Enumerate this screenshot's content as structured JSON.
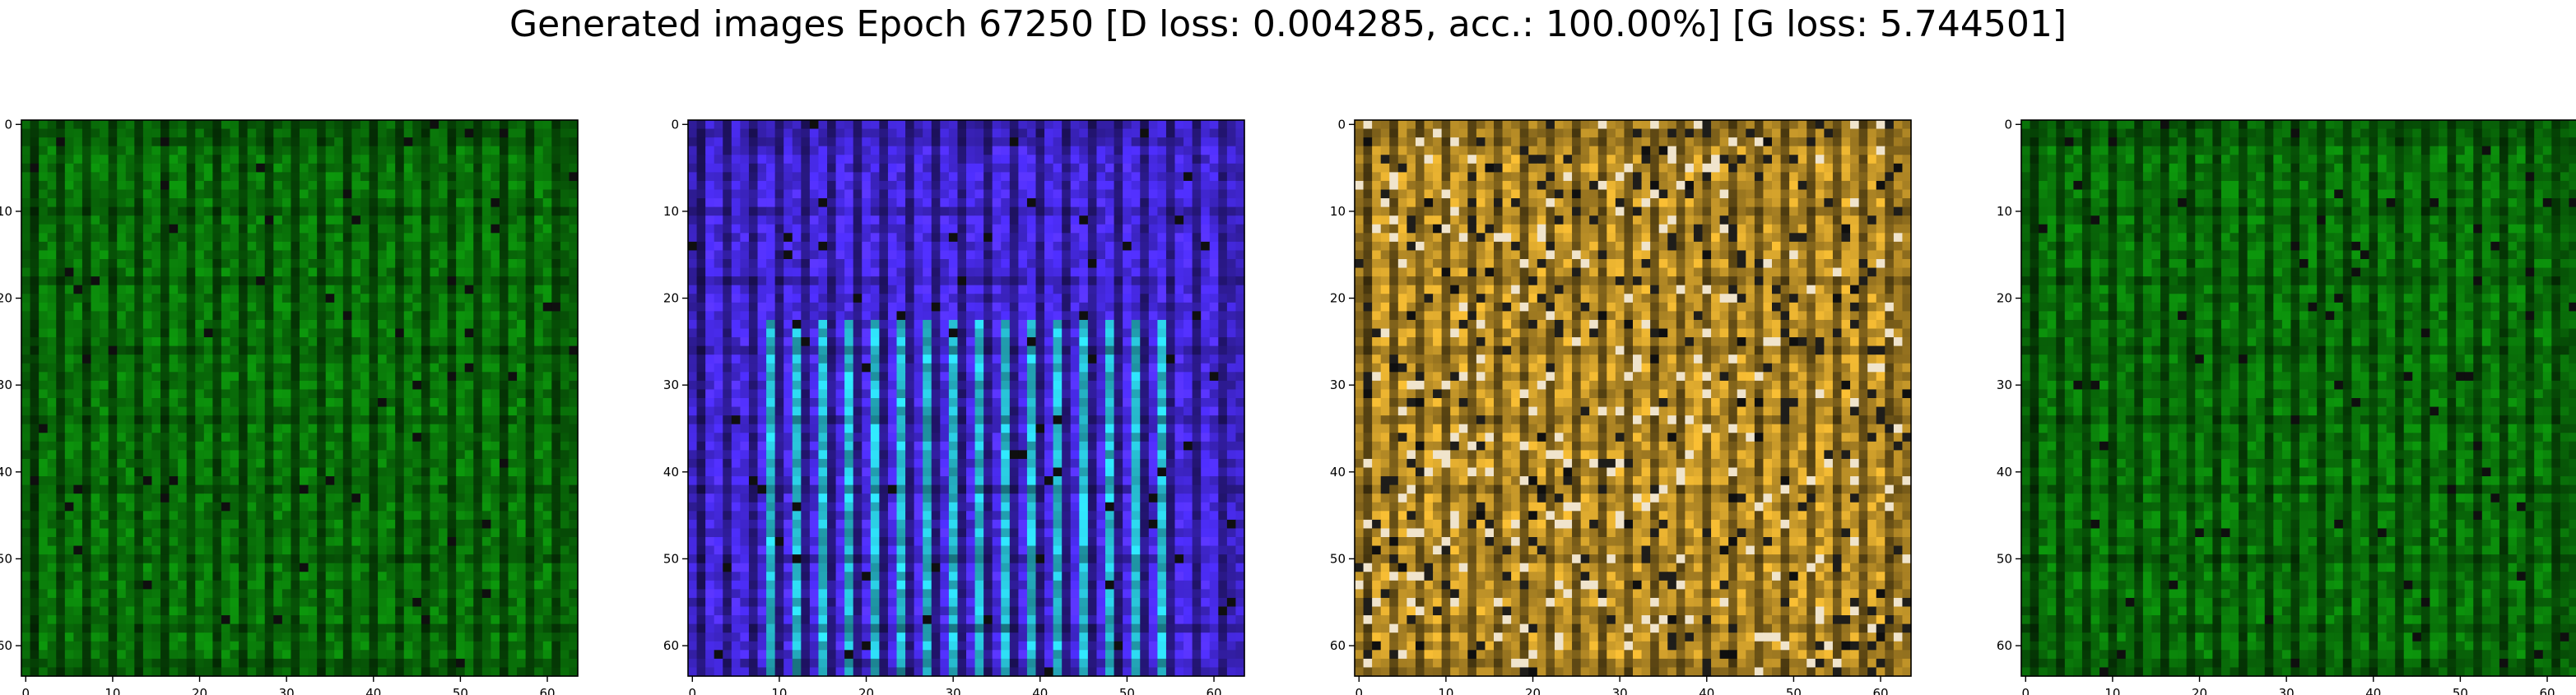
{
  "figure": {
    "suptitle": "Generated images Epoch 67250 [D loss: 0.004285, acc.: 100.00%] [G loss: 5.744501]"
  },
  "chart_data": [
    {
      "type": "heatmap",
      "name": "generated-image-1",
      "dominant_color": "#0a7a0a",
      "x_ticks": [
        0,
        10,
        20,
        30,
        40,
        50,
        60
      ],
      "y_ticks": [
        0,
        10,
        20,
        30,
        40,
        50,
        60
      ],
      "xlim": [
        -0.5,
        63.5
      ],
      "ylim": [
        63.5,
        -0.5
      ],
      "grid_size": [
        64,
        64
      ]
    },
    {
      "type": "heatmap",
      "name": "generated-image-2",
      "dominant_color": "#4a2cf0",
      "x_ticks": [
        0,
        10,
        20,
        30,
        40,
        50,
        60
      ],
      "y_ticks": [
        0,
        10,
        20,
        30,
        40,
        50,
        60
      ],
      "xlim": [
        -0.5,
        63.5
      ],
      "ylim": [
        63.5,
        -0.5
      ],
      "grid_size": [
        64,
        64
      ]
    },
    {
      "type": "heatmap",
      "name": "generated-image-3",
      "dominant_color": "#c99a2a",
      "x_ticks": [
        0,
        10,
        20,
        30,
        40,
        50,
        60
      ],
      "y_ticks": [
        0,
        10,
        20,
        30,
        40,
        50,
        60
      ],
      "xlim": [
        -0.5,
        63.5
      ],
      "ylim": [
        63.5,
        -0.5
      ],
      "grid_size": [
        64,
        64
      ]
    },
    {
      "type": "heatmap",
      "name": "generated-image-4",
      "dominant_color": "#0a7a0a",
      "x_ticks": [
        0,
        10,
        20,
        30,
        40,
        50,
        60
      ],
      "y_ticks": [
        0,
        10,
        20,
        30,
        40,
        50,
        60
      ],
      "xlim": [
        -0.5,
        63.5
      ],
      "ylim": [
        63.5,
        -0.5
      ],
      "grid_size": [
        64,
        64
      ]
    }
  ]
}
